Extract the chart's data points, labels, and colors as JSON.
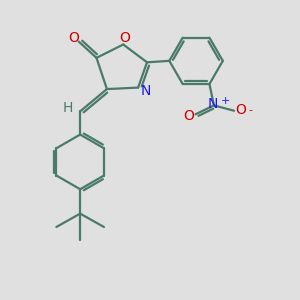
{
  "background_color": "#e0e0e0",
  "bond_color": "#4a7a6a",
  "bond_width": 1.6,
  "atom_colors": {
    "O": "#cc0000",
    "N": "#1a1aee",
    "C": "#4a7a6a",
    "H": "#4a7a6a"
  },
  "font_size_atoms": 10,
  "font_size_small": 8,
  "figsize": [
    3.0,
    3.0
  ],
  "dpi": 100
}
